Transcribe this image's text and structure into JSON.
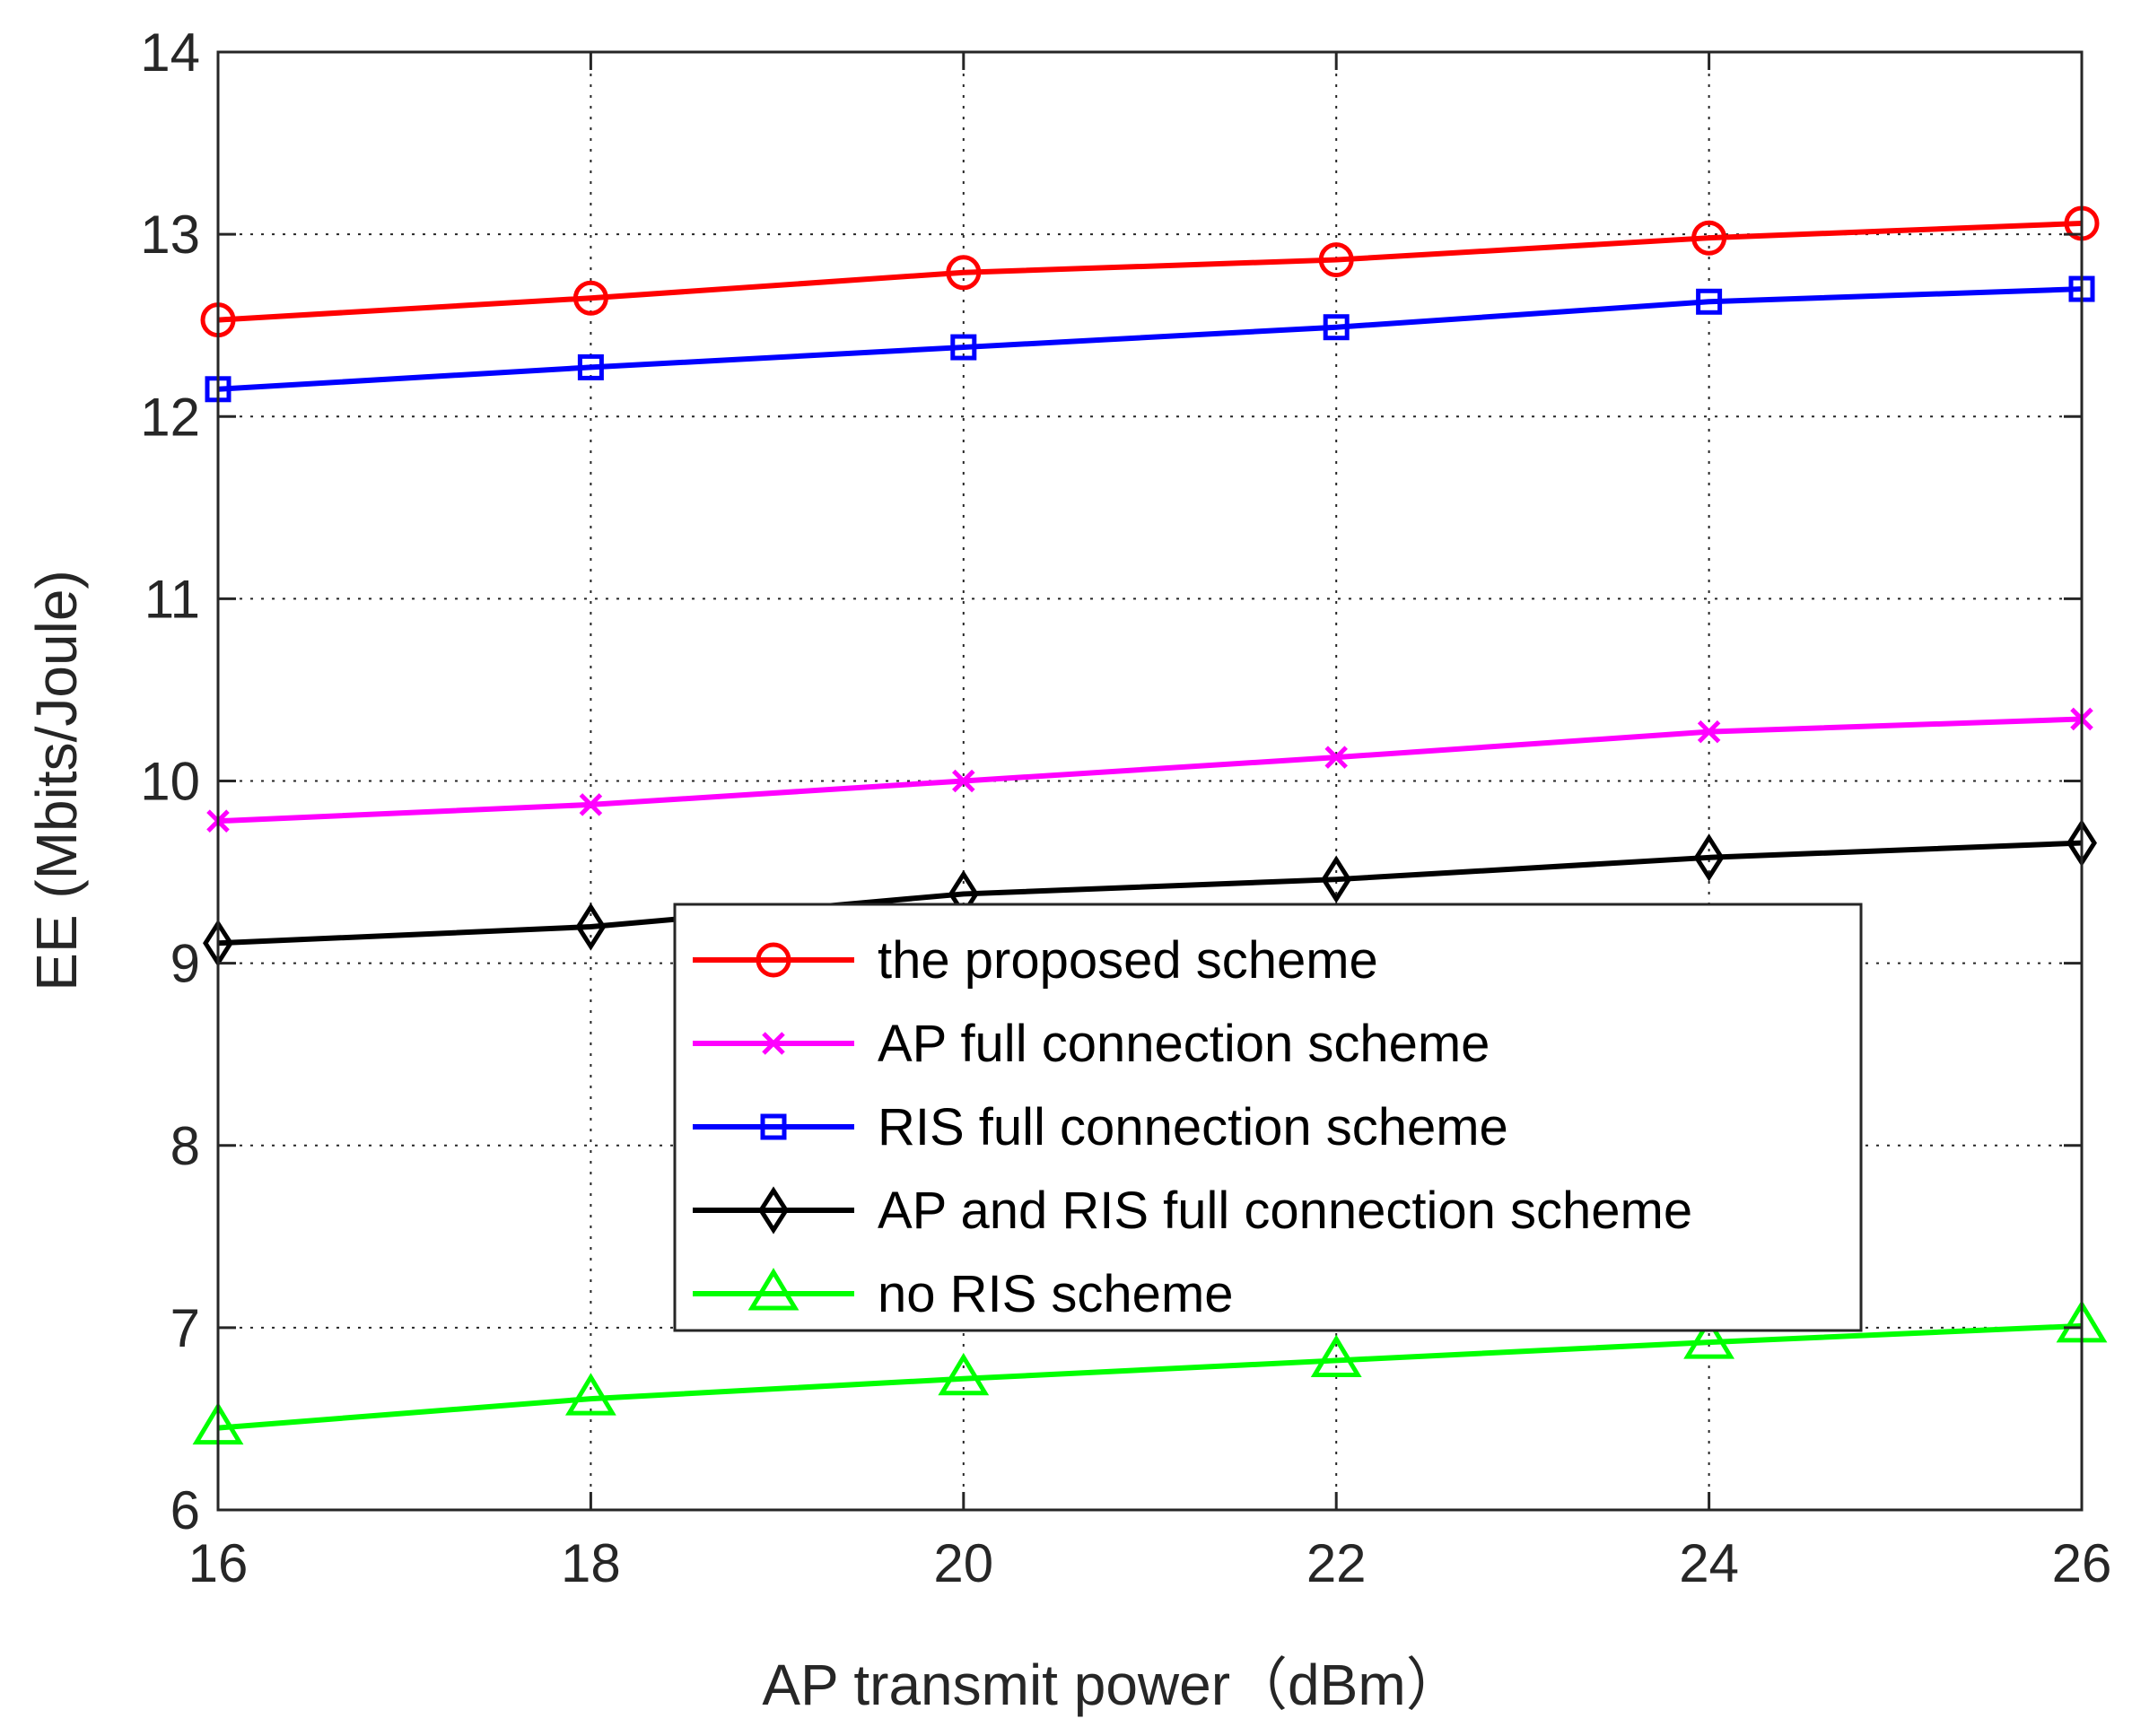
{
  "chart_data": {
    "type": "line",
    "title": "",
    "xlabel": "AP transmit power（dBm）",
    "ylabel": "EE (Mbits/Joule)",
    "xlim": [
      16,
      26
    ],
    "ylim": [
      6,
      14
    ],
    "x_ticks": [
      16,
      18,
      20,
      22,
      24,
      26
    ],
    "y_ticks": [
      6,
      7,
      8,
      9,
      10,
      11,
      12,
      13,
      14
    ],
    "x_tick_labels": [
      "16",
      "18",
      "20",
      "22",
      "24",
      "26"
    ],
    "y_tick_labels": [
      "6",
      "7",
      "8",
      "9",
      "10",
      "11",
      "12",
      "13",
      "14"
    ],
    "grid": true,
    "legend_position": "center",
    "x": [
      16,
      18,
      20,
      22,
      24,
      26
    ],
    "series": [
      {
        "name": "the proposed scheme",
        "color": "#ff0000",
        "marker": "circle",
        "values": [
          12.53,
          12.65,
          12.79,
          12.86,
          12.98,
          13.06
        ]
      },
      {
        "name": "AP full connection scheme",
        "color": "#ff00ff",
        "marker": "x",
        "values": [
          9.78,
          9.87,
          10.0,
          10.13,
          10.27,
          10.34
        ]
      },
      {
        "name": "RIS full connection scheme",
        "color": "#0000ff",
        "marker": "square",
        "values": [
          12.15,
          12.27,
          12.38,
          12.49,
          12.63,
          12.7
        ]
      },
      {
        "name": "AP and RIS full connection scheme",
        "color": "#000000",
        "marker": "diamond",
        "values": [
          9.11,
          9.2,
          9.38,
          9.46,
          9.58,
          9.66
        ]
      },
      {
        "name": "no RIS scheme",
        "color": "#00ff00",
        "marker": "triangle",
        "values": [
          6.45,
          6.61,
          6.72,
          6.82,
          6.92,
          7.01
        ]
      }
    ]
  }
}
